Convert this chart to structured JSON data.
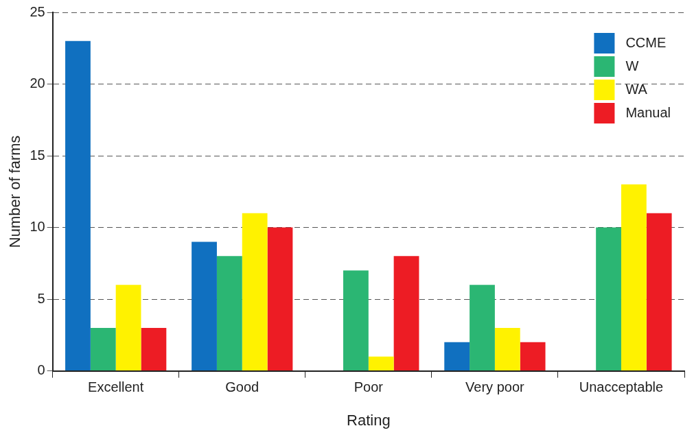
{
  "chart_data": {
    "type": "bar",
    "xlabel": "Rating",
    "ylabel": "Number of farms",
    "categories": [
      "Excellent",
      "Good",
      "Poor",
      "Very poor",
      "Unacceptable"
    ],
    "series": [
      {
        "name": "CCME",
        "color": "#1070c0",
        "values": [
          23,
          9,
          0,
          2,
          0
        ]
      },
      {
        "name": "W",
        "color": "#2bb673",
        "values": [
          3,
          8,
          7,
          6,
          10
        ]
      },
      {
        "name": "WA",
        "color": "#fff200",
        "values": [
          6,
          11,
          1,
          3,
          13
        ]
      },
      {
        "name": "Manual",
        "color": "#ed1c24",
        "values": [
          3,
          10,
          8,
          2,
          11
        ]
      }
    ],
    "ylim": [
      0,
      25
    ],
    "yticks": [
      0,
      5,
      10,
      15,
      20,
      25
    ],
    "grid": "y",
    "legend": "top right"
  }
}
